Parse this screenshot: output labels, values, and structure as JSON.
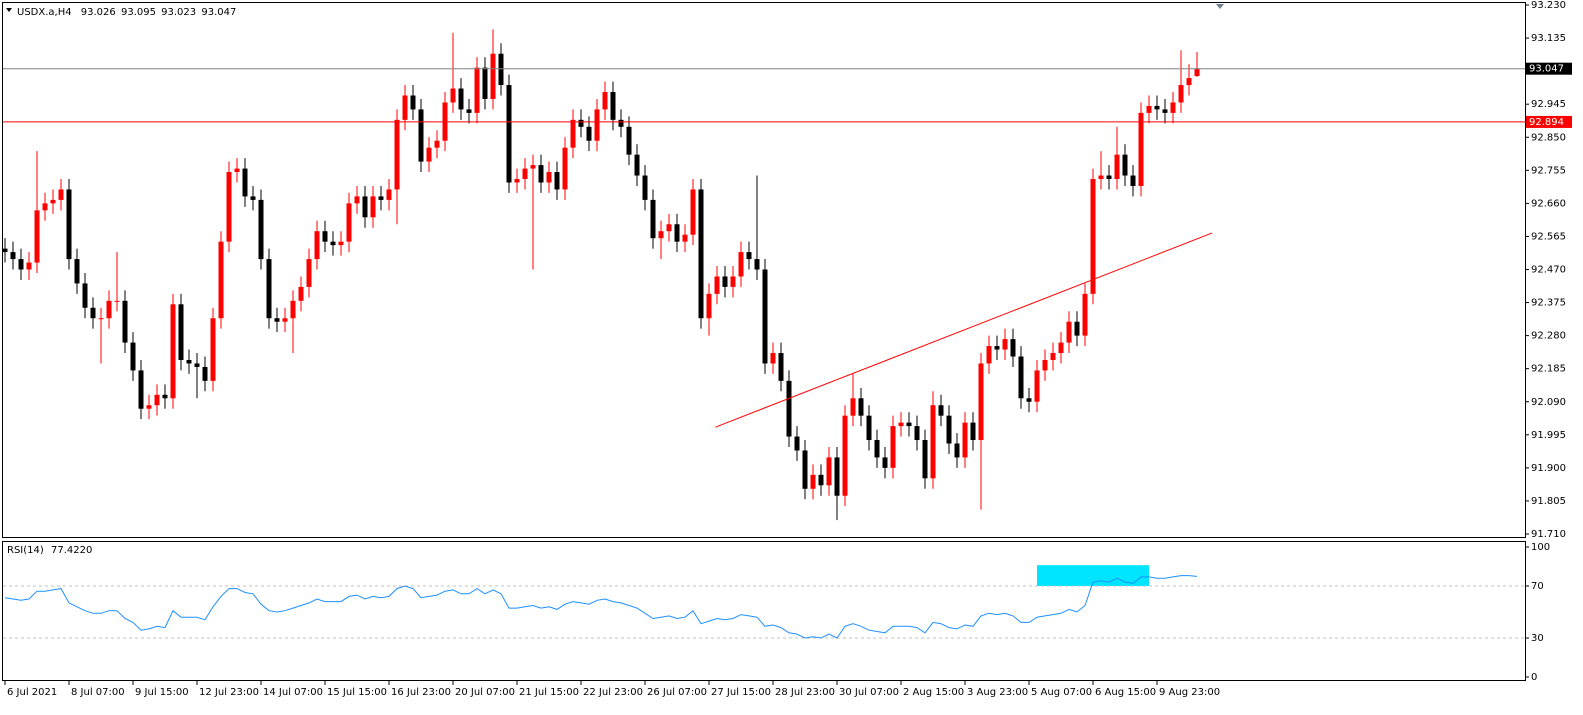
{
  "chart_data": [
    {
      "type": "candlestick",
      "symbol": "USDX.a,H4",
      "up_color": "#ff0000",
      "down_color": "#000000",
      "open": [
        92.53,
        92.52,
        92.5,
        92.47,
        92.49,
        92.64,
        92.66,
        92.67,
        92.7,
        92.5,
        92.43,
        92.36,
        92.33,
        92.33,
        92.38,
        92.38,
        92.26,
        92.18,
        92.07,
        92.08,
        92.11,
        92.1,
        92.37,
        92.21,
        92.2,
        92.19,
        92.15,
        92.33,
        92.55,
        92.75,
        92.76,
        92.68,
        92.67,
        92.5,
        92.33,
        92.32,
        92.33,
        92.38,
        92.42,
        92.5,
        92.58,
        92.55,
        92.54,
        92.55,
        92.66,
        92.68,
        92.62,
        92.68,
        92.67,
        92.7,
        92.9,
        92.97,
        92.93,
        92.78,
        92.82,
        92.84,
        92.95,
        92.99,
        92.93,
        92.92,
        93.05,
        92.96,
        93.09,
        93.0,
        92.72,
        92.73,
        92.76,
        92.77,
        92.72,
        92.75,
        92.7,
        92.82,
        92.9,
        92.88,
        92.84,
        92.93,
        92.98,
        92.9,
        92.88,
        92.8,
        92.74,
        92.67,
        92.56,
        92.58,
        92.6,
        92.55,
        92.57,
        92.7,
        92.33,
        92.4,
        92.45,
        92.42,
        92.45,
        92.52,
        92.5,
        92.47,
        92.2,
        92.23,
        92.15,
        91.99,
        91.95,
        91.84,
        91.88,
        91.85,
        91.93,
        91.82,
        92.05,
        92.1,
        92.05,
        91.98,
        91.93,
        91.9,
        92.02,
        92.03,
        92.02,
        91.98,
        91.87,
        92.08,
        92.05,
        91.97,
        91.93,
        92.03,
        91.98,
        92.2,
        92.25,
        92.24,
        92.27,
        92.22,
        92.1,
        92.09,
        92.18,
        92.21,
        92.23,
        92.26,
        92.32,
        92.28,
        92.4,
        92.73,
        92.74,
        92.73,
        92.8,
        92.74,
        92.71,
        92.92,
        92.94,
        92.93,
        92.92,
        92.95,
        93.0,
        93.026
      ],
      "high": [
        92.56,
        92.55,
        92.53,
        92.52,
        92.81,
        92.69,
        92.7,
        92.73,
        92.73,
        92.53,
        92.46,
        92.39,
        92.36,
        92.41,
        92.52,
        92.41,
        92.29,
        92.21,
        92.11,
        92.14,
        92.14,
        92.4,
        92.4,
        92.24,
        92.23,
        92.22,
        92.36,
        92.58,
        92.78,
        92.79,
        92.79,
        92.71,
        92.7,
        92.53,
        92.36,
        92.36,
        92.41,
        92.45,
        92.53,
        92.61,
        92.61,
        92.58,
        92.58,
        92.69,
        92.71,
        92.71,
        92.71,
        92.71,
        92.73,
        92.93,
        93.0,
        93.0,
        92.96,
        92.85,
        92.87,
        92.98,
        93.15,
        93.02,
        92.96,
        93.08,
        93.08,
        93.16,
        93.12,
        93.03,
        92.76,
        92.79,
        92.8,
        92.8,
        92.78,
        92.78,
        92.85,
        92.93,
        92.93,
        92.91,
        92.96,
        93.01,
        93.01,
        92.93,
        92.91,
        92.83,
        92.77,
        92.7,
        92.61,
        92.63,
        92.63,
        92.6,
        92.73,
        92.73,
        92.43,
        92.48,
        92.48,
        92.48,
        92.55,
        92.55,
        92.74,
        92.5,
        92.26,
        92.26,
        92.18,
        92.02,
        91.98,
        91.91,
        91.91,
        91.96,
        91.96,
        92.08,
        92.17,
        92.13,
        92.08,
        92.01,
        91.96,
        92.05,
        92.06,
        92.06,
        92.05,
        92.01,
        92.12,
        92.11,
        92.08,
        92.0,
        92.06,
        92.06,
        92.23,
        92.28,
        92.28,
        92.3,
        92.3,
        92.25,
        92.13,
        92.21,
        92.24,
        92.26,
        92.29,
        92.35,
        92.35,
        92.43,
        92.76,
        92.81,
        92.77,
        92.88,
        92.83,
        92.77,
        92.95,
        92.97,
        92.97,
        92.96,
        92.98,
        93.1,
        93.06,
        93.095
      ],
      "low": [
        92.49,
        92.47,
        92.44,
        92.44,
        92.46,
        92.61,
        92.63,
        92.64,
        92.47,
        92.4,
        92.33,
        92.3,
        92.2,
        92.3,
        92.35,
        92.23,
        92.15,
        92.04,
        92.04,
        92.05,
        92.07,
        92.07,
        92.18,
        92.17,
        92.1,
        92.12,
        92.12,
        92.3,
        92.52,
        92.72,
        92.65,
        92.64,
        92.47,
        92.3,
        92.29,
        92.29,
        92.23,
        92.35,
        92.39,
        92.47,
        92.52,
        92.51,
        92.51,
        92.52,
        92.63,
        92.59,
        92.59,
        92.64,
        92.64,
        92.6,
        92.87,
        92.9,
        92.75,
        92.75,
        92.79,
        92.81,
        92.92,
        92.9,
        92.89,
        92.89,
        92.93,
        92.93,
        92.97,
        92.69,
        92.69,
        92.7,
        92.47,
        92.69,
        92.69,
        92.67,
        92.67,
        92.79,
        92.85,
        92.81,
        92.81,
        92.9,
        92.87,
        92.85,
        92.77,
        92.71,
        92.64,
        92.53,
        92.5,
        92.55,
        92.52,
        92.52,
        92.54,
        92.3,
        92.28,
        92.37,
        92.39,
        92.39,
        92.42,
        92.47,
        92.44,
        92.17,
        92.17,
        92.12,
        91.96,
        91.92,
        91.81,
        91.81,
        91.82,
        91.82,
        91.75,
        91.79,
        92.02,
        92.02,
        91.95,
        91.9,
        91.87,
        91.87,
        91.99,
        91.99,
        91.95,
        91.84,
        91.84,
        92.02,
        91.94,
        91.9,
        91.9,
        91.95,
        91.78,
        92.17,
        92.21,
        92.21,
        92.19,
        92.07,
        92.06,
        92.06,
        92.15,
        92.18,
        92.2,
        92.23,
        92.25,
        92.25,
        92.37,
        92.7,
        92.7,
        92.7,
        92.71,
        92.68,
        92.68,
        92.89,
        92.9,
        92.89,
        92.89,
        92.92,
        92.97,
        93.023
      ],
      "close": [
        92.52,
        92.5,
        92.47,
        92.49,
        92.64,
        92.66,
        92.67,
        92.7,
        92.5,
        92.43,
        92.36,
        92.33,
        92.33,
        92.38,
        92.38,
        92.26,
        92.18,
        92.07,
        92.08,
        92.11,
        92.1,
        92.37,
        92.21,
        92.2,
        92.19,
        92.15,
        92.33,
        92.55,
        92.75,
        92.76,
        92.68,
        92.67,
        92.5,
        92.33,
        92.32,
        92.33,
        92.38,
        92.42,
        92.5,
        92.58,
        92.55,
        92.54,
        92.55,
        92.66,
        92.68,
        92.62,
        92.68,
        92.67,
        92.7,
        92.9,
        92.97,
        92.93,
        92.78,
        92.82,
        92.84,
        92.95,
        92.99,
        92.93,
        92.92,
        93.05,
        92.96,
        93.09,
        93.0,
        92.72,
        92.73,
        92.76,
        92.77,
        92.72,
        92.75,
        92.7,
        92.82,
        92.9,
        92.88,
        92.84,
        92.93,
        92.98,
        92.9,
        92.88,
        92.8,
        92.74,
        92.67,
        92.56,
        92.58,
        92.6,
        92.55,
        92.57,
        92.7,
        92.33,
        92.4,
        92.45,
        92.42,
        92.45,
        92.52,
        92.5,
        92.47,
        92.2,
        92.23,
        92.15,
        91.99,
        91.95,
        91.84,
        91.88,
        91.85,
        91.93,
        91.82,
        92.05,
        92.1,
        92.05,
        91.98,
        91.93,
        91.9,
        92.02,
        92.03,
        92.02,
        91.98,
        91.87,
        92.08,
        92.05,
        91.97,
        91.93,
        92.03,
        91.98,
        92.2,
        92.25,
        92.24,
        92.27,
        92.22,
        92.1,
        92.09,
        92.18,
        92.21,
        92.23,
        92.26,
        92.32,
        92.28,
        92.4,
        92.73,
        92.74,
        92.73,
        92.8,
        92.74,
        92.71,
        92.92,
        92.94,
        92.93,
        92.92,
        92.95,
        93.0,
        93.02,
        93.047
      ],
      "ylim": [
        91.71,
        93.23
      ],
      "yticks": [
        {
          "value": 93.23,
          "label": "93.230"
        },
        93.135,
        92.945,
        {
          "value": 92.85,
          "label": "92.850"
        },
        92.755,
        {
          "value": 92.66,
          "label": "92.660"
        },
        92.565,
        {
          "value": 92.47,
          "label": "92.470"
        },
        92.375,
        {
          "value": 92.28,
          "label": "92.280"
        },
        92.185,
        {
          "value": 92.09,
          "label": "92.090"
        },
        91.995,
        {
          "value": 91.9,
          "label": "91.900"
        },
        91.805,
        {
          "value": 91.71,
          "label": "91.710"
        }
      ],
      "xticks": [
        {
          "value": 0,
          "label": "6 Jul 2021"
        },
        {
          "value": 8,
          "label": "8 Jul 07:00"
        },
        {
          "value": 16,
          "label": "9 Jul 15:00"
        },
        {
          "value": 24,
          "label": "12 Jul 23:00"
        },
        {
          "value": 32,
          "label": "14 Jul 07:00"
        },
        {
          "value": 40,
          "label": "15 Jul 15:00"
        },
        {
          "value": 48,
          "label": "16 Jul 23:00"
        },
        {
          "value": 56,
          "label": "20 Jul 07:00"
        },
        {
          "value": 64,
          "label": "21 Jul 15:00"
        },
        {
          "value": 72,
          "label": "22 Jul 23:00"
        },
        {
          "value": 80,
          "label": "26 Jul 07:00"
        },
        {
          "value": 88,
          "label": "27 Jul 15:00"
        },
        {
          "value": 96,
          "label": "28 Jul 23:00"
        },
        {
          "value": 104,
          "label": "30 Jul 07:00"
        },
        {
          "value": 112,
          "label": "2 Aug 15:00"
        },
        {
          "value": 120,
          "label": "3 Aug 23:00"
        },
        {
          "value": 128,
          "label": "5 Aug 07:00"
        },
        {
          "value": 136,
          "label": "6 Aug 15:00"
        },
        {
          "value": 144,
          "label": "9 Aug 23:00"
        }
      ],
      "hlines": [
        {
          "value": 92.894,
          "color": "#ff0000"
        }
      ],
      "price_line_color": "#808080",
      "trendline": {
        "x": [
          88.8,
          150.9
        ],
        "y": [
          92.017,
          92.575
        ],
        "color": "#ff0000"
      }
    },
    {
      "type": "line",
      "name": "RSI(14)",
      "current_label": "77.4220",
      "color": "#1e90ff",
      "values": [
        61,
        60,
        59,
        60,
        66,
        66,
        67,
        68,
        57,
        54,
        51,
        49,
        49,
        51,
        51,
        45,
        42,
        36,
        37,
        39,
        38,
        51,
        46,
        46,
        46,
        44,
        54,
        62,
        68,
        68,
        65,
        64,
        56,
        51,
        50,
        51,
        53,
        55,
        57,
        60,
        58,
        58,
        58,
        62,
        63,
        60,
        62,
        61,
        62,
        68,
        70,
        68,
        61,
        62,
        63,
        66,
        67,
        64,
        64,
        68,
        64,
        67,
        64,
        53,
        53,
        54,
        55,
        53,
        54,
        52,
        56,
        58,
        57,
        56,
        59,
        60,
        58,
        57,
        55,
        53,
        49,
        45,
        46,
        47,
        45,
        46,
        51,
        41,
        43,
        45,
        44,
        45,
        48,
        47,
        46,
        39,
        40,
        38,
        34,
        33,
        30,
        31,
        30,
        33,
        30,
        39,
        41,
        39,
        36,
        35,
        34,
        39,
        39,
        39,
        38,
        34,
        42,
        41,
        38,
        37,
        40,
        39,
        47,
        49,
        48,
        49,
        47,
        42,
        42,
        46,
        47,
        48,
        49,
        52,
        50,
        55,
        73,
        74,
        73,
        76,
        73,
        72,
        77,
        77,
        76,
        76,
        77,
        78,
        78,
        77.422
      ],
      "ylim": [
        0,
        100
      ],
      "yticks": [
        0,
        30,
        70,
        100
      ],
      "levels": [
        30,
        70
      ],
      "level_color": "#c0c0c0",
      "highlight": {
        "x": [
          129,
          143
        ],
        "y": [
          70,
          86
        ],
        "color": "#00e5ff"
      }
    }
  ]
}
